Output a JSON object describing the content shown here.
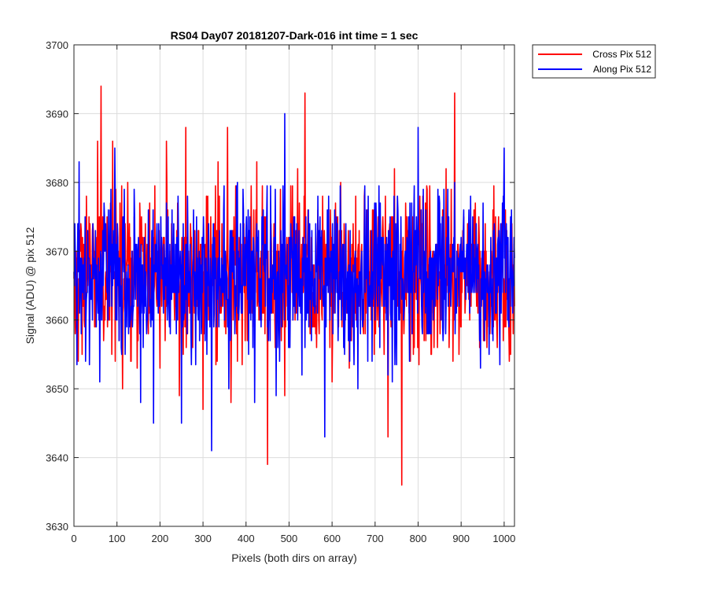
{
  "chart_data": {
    "type": "line",
    "title": "RS04 Day07 20181207-Dark-016 int time = 1 sec",
    "xlabel": "Pixels (both dirs on array)",
    "ylabel": "Signal (ADU) @ pix 512",
    "xlim": [
      0,
      1024
    ],
    "ylim": [
      3630,
      3700
    ],
    "xticks": [
      0,
      100,
      200,
      300,
      400,
      500,
      600,
      700,
      800,
      900,
      1000
    ],
    "yticks": [
      3630,
      3640,
      3650,
      3660,
      3670,
      3680,
      3690,
      3700
    ],
    "grid": true,
    "legend_position": "outside-top-right",
    "series": [
      {
        "name": "Cross Pix 512",
        "color": "#ff0000",
        "baseline": 3666.5,
        "noise_sd": 5.5,
        "x": [
          0,
          10,
          20,
          35,
          48,
          55,
          63,
          75,
          90,
          105,
          113,
          125,
          147,
          160,
          172,
          190,
          200,
          215,
          235,
          245,
          260,
          283,
          300,
          318,
          335,
          350,
          357,
          365,
          390,
          410,
          425,
          450,
          470,
          490,
          505,
          520,
          537,
          560,
          585,
          600,
          620,
          640,
          655,
          680,
          700,
          705,
          730,
          745,
          762,
          780,
          800,
          810,
          830,
          850,
          865,
          885,
          895,
          915,
          930,
          945,
          960,
          985,
          1000,
          1015,
          1024
        ],
        "y": [
          3666,
          3654,
          3672,
          3675,
          3659,
          3686,
          3694,
          3663,
          3686,
          3657,
          3650,
          3680,
          3653,
          3670,
          3663,
          3667,
          3653,
          3686,
          3667,
          3649,
          3688,
          3660,
          3647,
          3675,
          3683,
          3659,
          3688,
          3648,
          3665,
          3661,
          3683,
          3639,
          3661,
          3649,
          3671,
          3682,
          3693,
          3665,
          3661,
          3651,
          3680,
          3653,
          3678,
          3668,
          3667,
          3660,
          3643,
          3682,
          3636,
          3674,
          3660,
          3668,
          3655,
          3665,
          3682,
          3693,
          3655,
          3674,
          3676,
          3666,
          3656,
          3671,
          3665,
          3655,
          3662
        ]
      },
      {
        "name": "Along Pix 512",
        "color": "#0000ff",
        "baseline": 3666.5,
        "noise_sd": 5.5,
        "x": [
          0,
          12,
          27,
          40,
          60,
          80,
          95,
          110,
          125,
          140,
          155,
          175,
          185,
          200,
          215,
          225,
          250,
          265,
          290,
          320,
          338,
          360,
          380,
          400,
          420,
          440,
          460,
          470,
          490,
          505,
          530,
          550,
          570,
          583,
          600,
          620,
          640,
          660,
          680,
          700,
          715,
          730,
          740,
          760,
          780,
          800,
          815,
          840,
          860,
          870,
          885,
          900,
          925,
          945,
          960,
          980,
          1000,
          1024
        ],
        "y": [
          3667,
          3683,
          3654,
          3663,
          3651,
          3676,
          3685,
          3656,
          3664,
          3679,
          3648,
          3667,
          3645,
          3666,
          3677,
          3668,
          3645,
          3671,
          3666,
          3641,
          3673,
          3650,
          3680,
          3673,
          3648,
          3676,
          3666,
          3649,
          3690,
          3671,
          3652,
          3667,
          3669,
          3643,
          3664,
          3674,
          3666,
          3650,
          3676,
          3660,
          3672,
          3652,
          3651,
          3675,
          3654,
          3688,
          3668,
          3669,
          3679,
          3662,
          3680,
          3672,
          3665,
          3653,
          3668,
          3661,
          3685,
          3669
        ]
      }
    ]
  }
}
